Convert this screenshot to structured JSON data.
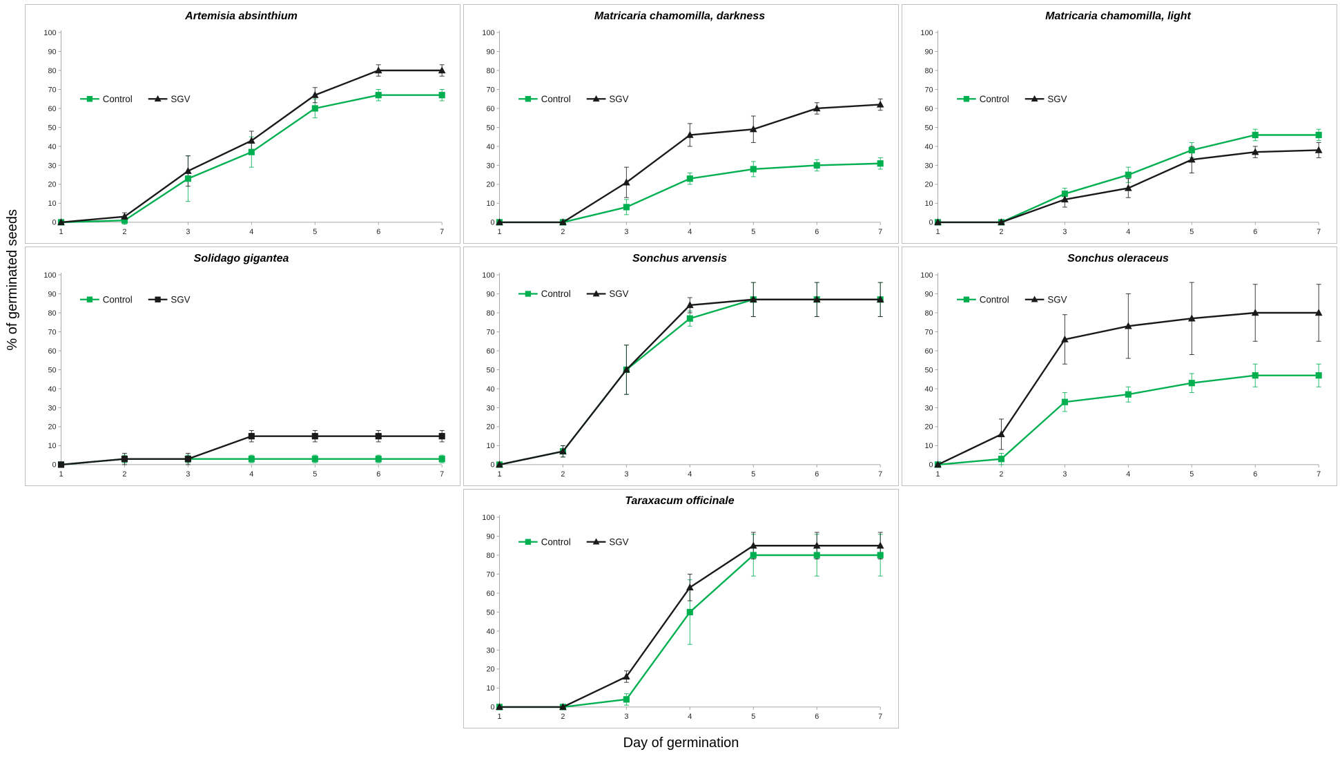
{
  "page": {
    "y_axis_label": "% of germinated seeds",
    "x_axis_label": "Day of germination"
  },
  "colors": {
    "control": "#00B050",
    "sgv": "#1a1a1a",
    "axis": "#a6a6a6",
    "border": "#bfbfbf"
  },
  "chart_data": [
    {
      "type": "line",
      "title": "Artemisia absinthium",
      "x": [
        1,
        2,
        3,
        4,
        5,
        6,
        7
      ],
      "xlabel": "",
      "ylabel": "",
      "ylim": [
        0,
        100
      ],
      "ytick_step": 10,
      "grid": false,
      "legend": {
        "position": "inside-upper-left",
        "x": 0.05,
        "y": 0.35
      },
      "series": [
        {
          "name": "Control",
          "color": "#00B050",
          "marker": "square",
          "values": [
            0,
            1,
            23,
            37,
            60,
            67,
            67
          ],
          "errors": [
            1,
            2,
            12,
            8,
            5,
            3,
            3
          ]
        },
        {
          "name": "SGV",
          "color": "#1a1a1a",
          "marker": "triangle",
          "values": [
            0,
            3,
            27,
            43,
            67,
            80,
            80
          ],
          "errors": [
            1,
            2,
            8,
            5,
            4,
            3,
            3
          ]
        }
      ]
    },
    {
      "type": "line",
      "title": "Matricaria chamomilla, darkness",
      "x": [
        1,
        2,
        3,
        4,
        5,
        6,
        7
      ],
      "xlabel": "",
      "ylabel": "",
      "ylim": [
        0,
        100
      ],
      "ytick_step": 10,
      "grid": false,
      "legend": {
        "position": "inside-upper-left",
        "x": 0.05,
        "y": 0.35
      },
      "series": [
        {
          "name": "Control",
          "color": "#00B050",
          "marker": "square",
          "values": [
            0,
            0,
            8,
            23,
            28,
            30,
            31
          ],
          "errors": [
            0,
            0,
            4,
            3,
            4,
            3,
            3
          ]
        },
        {
          "name": "SGV",
          "color": "#1a1a1a",
          "marker": "triangle",
          "values": [
            0,
            0,
            21,
            46,
            49,
            60,
            62
          ],
          "errors": [
            0,
            0,
            8,
            6,
            7,
            3,
            3
          ]
        }
      ]
    },
    {
      "type": "line",
      "title": "Matricaria chamomilla, light",
      "x": [
        1,
        2,
        3,
        4,
        5,
        6,
        7
      ],
      "xlabel": "",
      "ylabel": "",
      "ylim": [
        0,
        100
      ],
      "ytick_step": 10,
      "grid": false,
      "legend": {
        "position": "inside-upper-left",
        "x": 0.05,
        "y": 0.35
      },
      "series": [
        {
          "name": "Control",
          "color": "#00B050",
          "marker": "square",
          "values": [
            0,
            0,
            15,
            25,
            38,
            46,
            46
          ],
          "errors": [
            1,
            1,
            3,
            4,
            4,
            3,
            3
          ]
        },
        {
          "name": "SGV",
          "color": "#1a1a1a",
          "marker": "triangle",
          "values": [
            0,
            0,
            12,
            18,
            33,
            37,
            38
          ],
          "errors": [
            1,
            1,
            4,
            5,
            7,
            3,
            4
          ]
        }
      ]
    },
    {
      "type": "line",
      "title": "Solidago gigantea",
      "x": [
        1,
        2,
        3,
        4,
        5,
        6,
        7
      ],
      "xlabel": "",
      "ylabel": "",
      "ylim": [
        0,
        100
      ],
      "ytick_step": 10,
      "grid": false,
      "legend": {
        "position": "inside-upper-left",
        "x": 0.05,
        "y": 0.13
      },
      "series": [
        {
          "name": "Control",
          "color": "#00B050",
          "marker": "square",
          "values": [
            0,
            3,
            3,
            3,
            3,
            3,
            3
          ],
          "errors": [
            1,
            2,
            2,
            2,
            2,
            2,
            2
          ]
        },
        {
          "name": "SGV",
          "color": "#1a1a1a",
          "marker": "square",
          "values": [
            0,
            3,
            3,
            15,
            15,
            15,
            15
          ],
          "errors": [
            1,
            3,
            3,
            3,
            3,
            3,
            3
          ]
        }
      ]
    },
    {
      "type": "line",
      "title": "Sonchus arvensis",
      "x": [
        1,
        2,
        3,
        4,
        5,
        6,
        7
      ],
      "xlabel": "",
      "ylabel": "",
      "ylim": [
        0,
        100
      ],
      "ytick_step": 10,
      "grid": false,
      "legend": {
        "position": "inside-upper-left",
        "x": 0.05,
        "y": 0.1
      },
      "series": [
        {
          "name": "Control",
          "color": "#00B050",
          "marker": "square",
          "values": [
            0,
            7,
            50,
            77,
            87,
            87,
            87
          ],
          "errors": [
            1,
            3,
            13,
            4,
            9,
            9,
            9
          ]
        },
        {
          "name": "SGV",
          "color": "#1a1a1a",
          "marker": "triangle",
          "values": [
            0,
            7,
            50,
            84,
            87,
            87,
            87
          ],
          "errors": [
            1,
            3,
            13,
            4,
            9,
            9,
            9
          ]
        }
      ]
    },
    {
      "type": "line",
      "title": "Sonchus oleraceus",
      "x": [
        1,
        2,
        3,
        4,
        5,
        6,
        7
      ],
      "xlabel": "",
      "ylabel": "",
      "ylim": [
        0,
        100
      ],
      "ytick_step": 10,
      "grid": false,
      "legend": {
        "position": "inside-upper-left",
        "x": 0.05,
        "y": 0.13
      },
      "series": [
        {
          "name": "Control",
          "color": "#00B050",
          "marker": "square",
          "values": [
            0,
            3,
            33,
            37,
            43,
            47,
            47
          ],
          "errors": [
            1,
            3,
            5,
            4,
            5,
            6,
            6
          ]
        },
        {
          "name": "SGV",
          "color": "#1a1a1a",
          "marker": "triangle",
          "values": [
            0,
            16,
            66,
            73,
            77,
            80,
            80
          ],
          "errors": [
            1,
            8,
            13,
            17,
            19,
            15,
            15
          ]
        }
      ]
    },
    {
      "type": "line",
      "title": "Taraxacum officinale",
      "x": [
        1,
        2,
        3,
        4,
        5,
        6,
        7
      ],
      "xlabel": "",
      "ylabel": "",
      "ylim": [
        0,
        100
      ],
      "ytick_step": 10,
      "grid": false,
      "legend": {
        "position": "inside-upper-left",
        "x": 0.05,
        "y": 0.13
      },
      "series": [
        {
          "name": "Control",
          "color": "#00B050",
          "marker": "square",
          "values": [
            0,
            0,
            4,
            50,
            80,
            80,
            80
          ],
          "errors": [
            0,
            0,
            3,
            17,
            11,
            11,
            11
          ]
        },
        {
          "name": "SGV",
          "color": "#1a1a1a",
          "marker": "triangle",
          "values": [
            0,
            0,
            16,
            63,
            85,
            85,
            85
          ],
          "errors": [
            0,
            0,
            3,
            7,
            7,
            7,
            7
          ]
        }
      ]
    }
  ]
}
